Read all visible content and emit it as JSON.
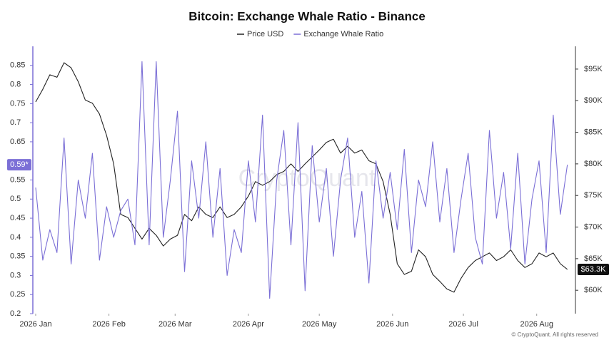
{
  "chart_data": {
    "type": "line",
    "title": "Bitcoin: Exchange Whale Ratio - Binance",
    "watermark": "CryptoQuant",
    "footer": "© CryptoQuant. All rights reserved",
    "x": [
      0,
      3,
      6,
      9,
      12,
      15,
      18,
      21,
      24,
      27,
      30,
      33,
      36,
      39,
      42,
      45,
      48,
      51,
      54,
      57,
      60,
      63,
      66,
      69,
      72,
      75,
      78,
      81,
      84,
      87,
      90,
      93,
      96,
      99,
      102,
      105,
      108,
      111,
      114,
      117,
      120,
      123,
      126,
      129,
      132,
      135,
      138,
      141,
      144,
      147,
      150,
      153,
      156,
      159,
      162,
      165,
      168,
      171,
      174,
      177,
      180,
      183,
      186,
      189,
      192,
      195,
      198,
      201,
      204,
      207,
      210,
      213,
      216,
      219,
      222,
      225
    ],
    "xlim": [
      -1.2,
      228.4
    ],
    "xticks": [
      {
        "value": 0,
        "label": "2026 Jan"
      },
      {
        "value": 31,
        "label": "2026 Feb"
      },
      {
        "value": 59,
        "label": "2026 Mar"
      },
      {
        "value": 90,
        "label": "2026 Apr"
      },
      {
        "value": 120,
        "label": "2026 May"
      },
      {
        "value": 151,
        "label": "2026 Jun"
      },
      {
        "value": 181,
        "label": "2026 Jul"
      },
      {
        "value": 212,
        "label": "2026 Aug"
      }
    ],
    "ylim": [
      0.2,
      0.9
    ],
    "yticks": [
      0.2,
      0.25,
      0.3,
      0.35,
      0.4,
      0.45,
      0.5,
      0.55,
      0.65,
      0.7,
      0.75,
      0.8,
      0.85
    ],
    "y2lim": [
      56300,
      98600
    ],
    "y2ticks": [
      {
        "value": 60000,
        "label": "$60K"
      },
      {
        "value": 65000,
        "label": "$65K"
      },
      {
        "value": 70000,
        "label": "$70K"
      },
      {
        "value": 75000,
        "label": "$75K"
      },
      {
        "value": 80000,
        "label": "$80K"
      },
      {
        "value": 85000,
        "label": "$85K"
      },
      {
        "value": 90000,
        "label": "$90K"
      },
      {
        "value": 95000,
        "label": "$95K"
      }
    ],
    "current_labels": [
      {
        "value": 0.59,
        "label": "0.59*",
        "axis": "y",
        "color": "#7b6fd6"
      },
      {
        "value": 63300,
        "label": "$63.3K",
        "axis": "y2",
        "color": "#111111"
      }
    ],
    "series": [
      {
        "name": "Price USD",
        "color": "#222222",
        "axis": "y2",
        "values": [
          89800,
          91800,
          94100,
          93700,
          96000,
          95200,
          93000,
          90100,
          89600,
          87900,
          84500,
          80000,
          72000,
          71500,
          69800,
          68100,
          69800,
          68700,
          67000,
          68100,
          68700,
          72000,
          71000,
          73200,
          72000,
          71500,
          73200,
          71500,
          72000,
          73200,
          74900,
          77200,
          76600,
          77200,
          78300,
          78800,
          80000,
          78800,
          80000,
          81100,
          82200,
          83400,
          83900,
          81700,
          82800,
          81700,
          82200,
          80500,
          80000,
          77200,
          72000,
          64200,
          62500,
          63000,
          66400,
          65300,
          62500,
          61400,
          60200,
          59700,
          61900,
          63600,
          64700,
          65300,
          65900,
          64700,
          65300,
          66400,
          64700,
          63600,
          64200,
          65900,
          65300,
          65900,
          64200,
          63300
        ]
      },
      {
        "name": "Exchange Whale Ratio",
        "color": "#7b6fd6",
        "axis": "y",
        "values": [
          0.53,
          0.34,
          0.42,
          0.36,
          0.66,
          0.33,
          0.55,
          0.45,
          0.62,
          0.34,
          0.48,
          0.4,
          0.47,
          0.5,
          0.38,
          0.86,
          0.38,
          0.86,
          0.4,
          0.55,
          0.73,
          0.31,
          0.6,
          0.45,
          0.65,
          0.4,
          0.58,
          0.3,
          0.42,
          0.36,
          0.6,
          0.44,
          0.72,
          0.24,
          0.55,
          0.68,
          0.38,
          0.7,
          0.26,
          0.64,
          0.44,
          0.58,
          0.35,
          0.55,
          0.66,
          0.4,
          0.52,
          0.28,
          0.6,
          0.45,
          0.57,
          0.42,
          0.63,
          0.36,
          0.55,
          0.48,
          0.65,
          0.44,
          0.58,
          0.36,
          0.5,
          0.62,
          0.4,
          0.33,
          0.68,
          0.45,
          0.57,
          0.37,
          0.62,
          0.33,
          0.5,
          0.6,
          0.36,
          0.72,
          0.46,
          0.59
        ]
      }
    ]
  }
}
